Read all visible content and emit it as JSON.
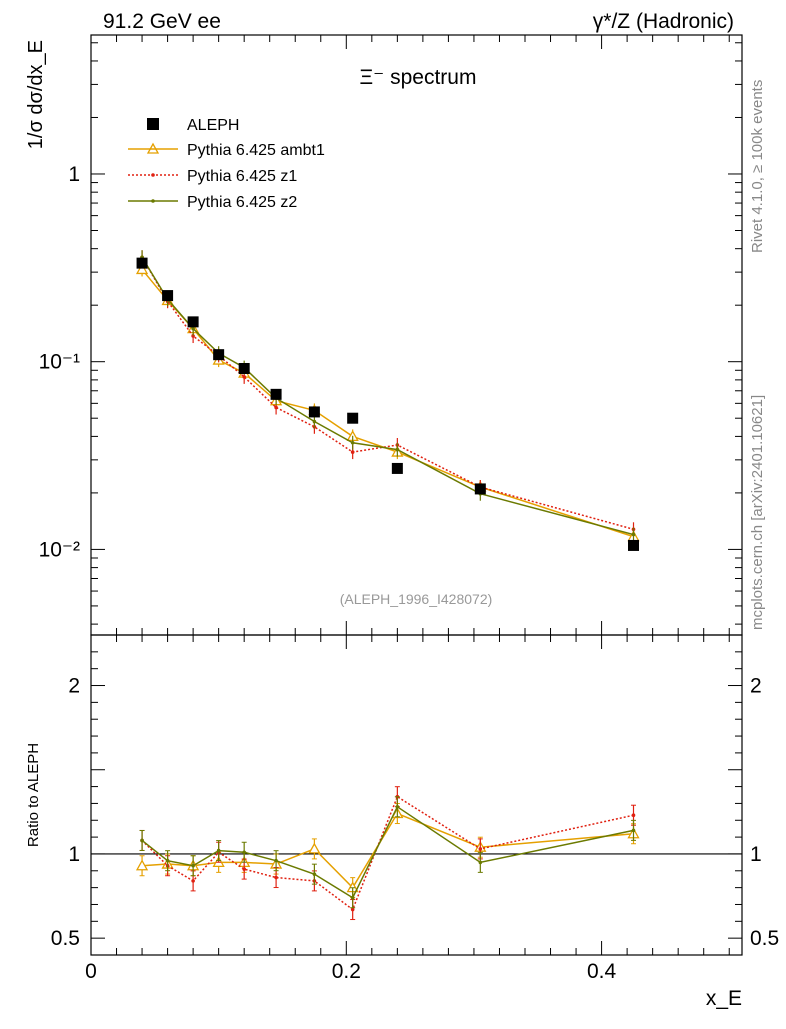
{
  "header": {
    "left": "91.2 GeV ee",
    "right": "γ*/Z (Hadronic)"
  },
  "side": {
    "rivet": "Rivet 4.1.0, ≥ 100k events",
    "mcplots": "mcplots.cern.ch [arXiv:2401.10621]"
  },
  "chart_data": [
    {
      "type": "scatter",
      "title": "Ξ⁻ spectrum",
      "ylabel": "1/σ  dσ/dx_E",
      "ylog": true,
      "ylim": [
        0.0035,
        5.5
      ],
      "xlim": [
        0,
        0.51
      ],
      "ytick_labels": [
        "1",
        "10⁻¹",
        "10⁻²"
      ],
      "ytick_values": [
        1,
        0.1,
        0.01
      ],
      "watermark": "(ALEPH_1996_I428072)",
      "x": [
        0.04,
        0.06,
        0.08,
        0.1,
        0.12,
        0.145,
        0.175,
        0.205,
        0.24,
        0.305,
        0.425
      ],
      "series": [
        {
          "name": "ALEPH",
          "color": "#000000",
          "style": "square",
          "values": [
            0.335,
            0.225,
            0.163,
            0.109,
            0.092,
            0.067,
            0.054,
            0.05,
            0.027,
            0.021,
            0.0105
          ]
        },
        {
          "name": "Pythia 6.425 ambt1",
          "color": "#E5A000",
          "style": "triangle",
          "values": [
            0.31,
            0.212,
            0.15,
            0.102,
            0.087,
            0.062,
            0.055,
            0.04,
            0.033,
            0.0215,
            0.0117
          ]
        },
        {
          "name": "Pythia 6.425 z1",
          "color": "#E02010",
          "style": "dotted",
          "values": [
            0.36,
            0.21,
            0.137,
            0.108,
            0.083,
            0.057,
            0.045,
            0.033,
            0.036,
            0.0215,
            0.0128
          ]
        },
        {
          "name": "Pythia 6.425 z2",
          "color": "#6B7A00",
          "style": "dot",
          "values": [
            0.36,
            0.215,
            0.15,
            0.111,
            0.093,
            0.064,
            0.048,
            0.037,
            0.034,
            0.0198,
            0.012
          ]
        }
      ]
    },
    {
      "type": "line",
      "ylabel": "Ratio to ALEPH",
      "xlabel": "x_E",
      "ylim": [
        0.4,
        2.3
      ],
      "xlim": [
        0,
        0.51
      ],
      "ytick_labels": [
        "0.5",
        "1",
        "2"
      ],
      "ytick_values": [
        0.5,
        1,
        2
      ],
      "xtick_labels": [
        "0",
        "0.2",
        "0.4"
      ],
      "xtick_values": [
        0,
        0.2,
        0.4
      ],
      "reference": 1,
      "x": [
        0.04,
        0.06,
        0.08,
        0.1,
        0.12,
        0.145,
        0.175,
        0.205,
        0.24,
        0.305,
        0.425
      ],
      "series": [
        {
          "name": "Pythia 6.425 ambt1",
          "color": "#E5A000",
          "values": [
            0.93,
            0.94,
            0.93,
            0.95,
            0.95,
            0.94,
            1.03,
            0.8,
            1.24,
            1.04,
            1.12
          ]
        },
        {
          "name": "Pythia 6.425 z1",
          "color": "#E02010",
          "values": [
            1.08,
            0.93,
            0.84,
            1.01,
            0.91,
            0.86,
            0.84,
            0.67,
            1.34,
            1.03,
            1.23
          ]
        },
        {
          "name": "Pythia 6.425 z2",
          "color": "#6B7A00",
          "values": [
            1.08,
            0.96,
            0.93,
            1.02,
            1.01,
            0.96,
            0.88,
            0.74,
            1.28,
            0.95,
            1.14
          ]
        }
      ]
    }
  ]
}
